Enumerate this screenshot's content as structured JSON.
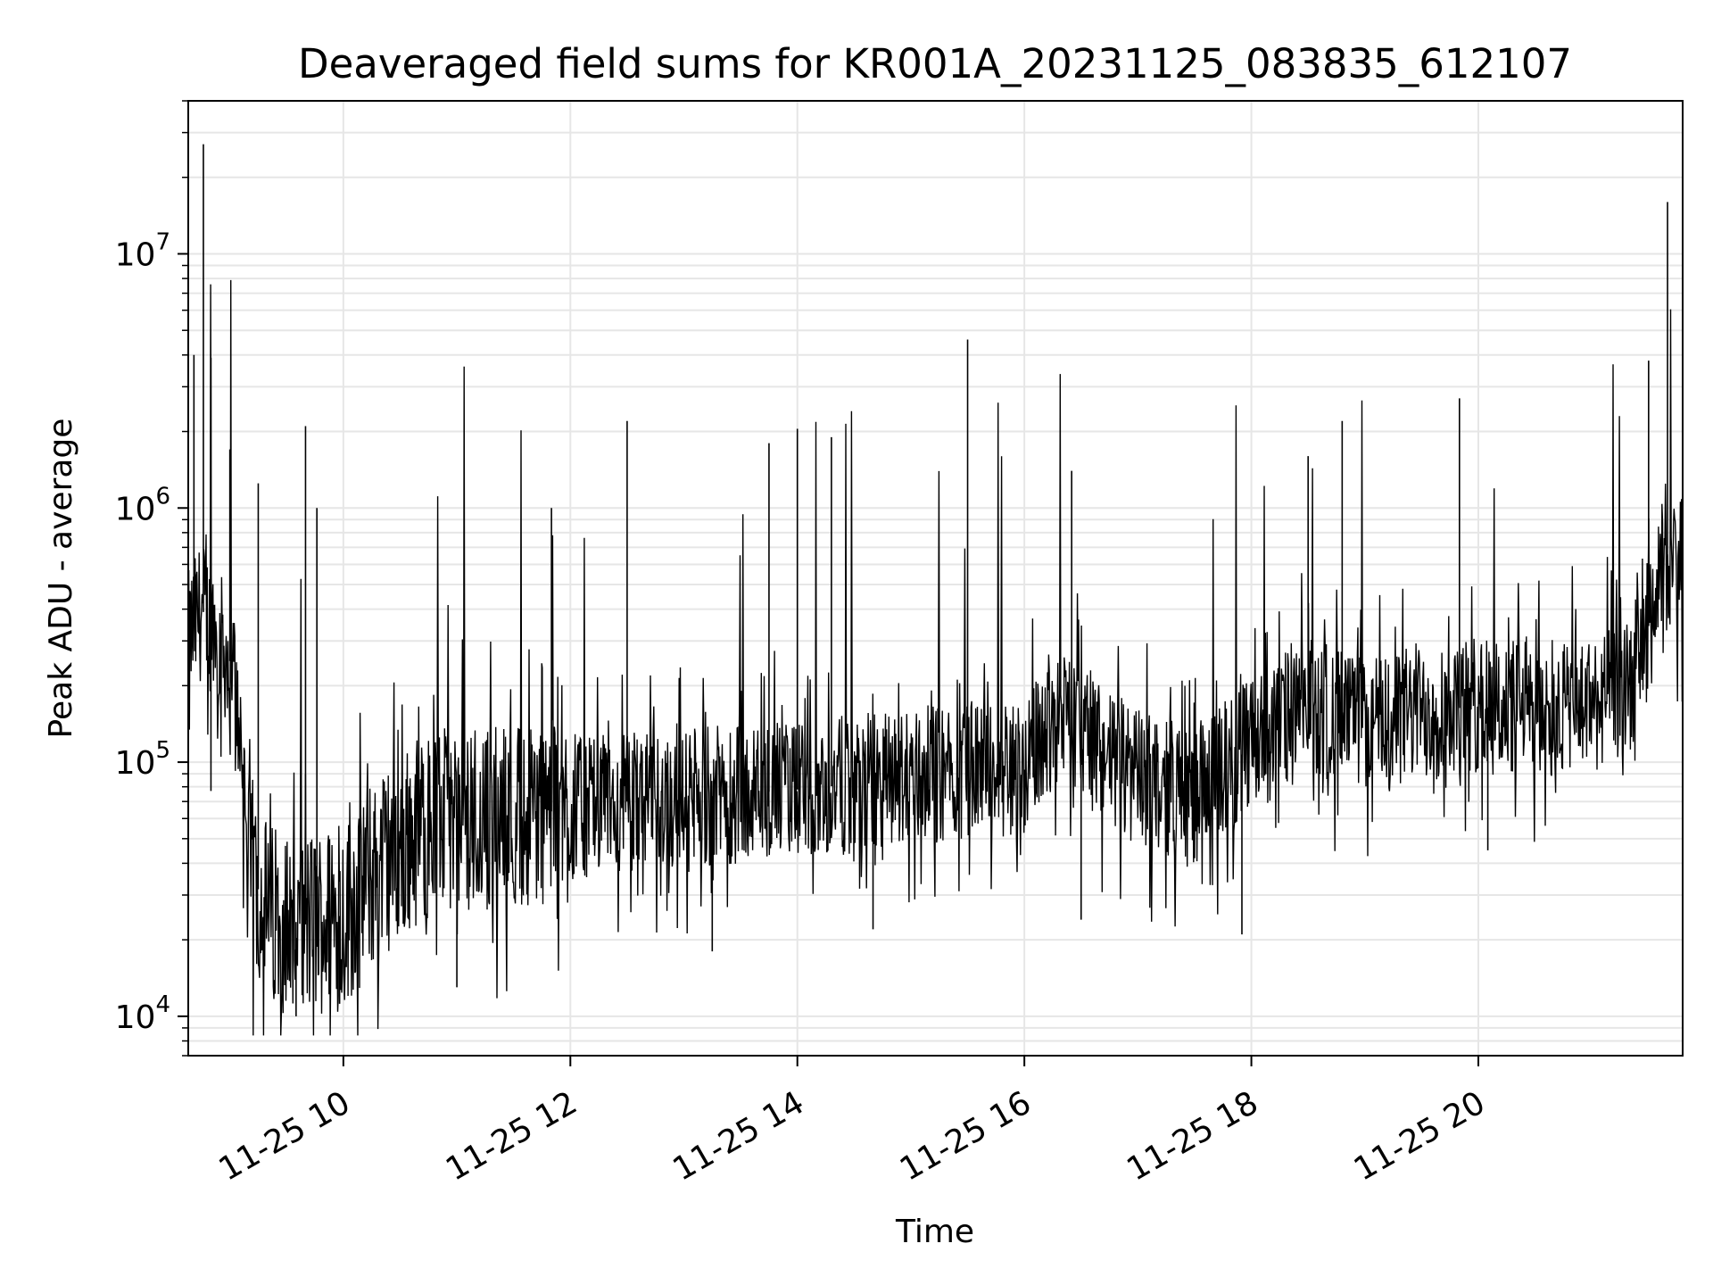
{
  "chart_data": {
    "type": "line",
    "title": "Deaveraged field sums for KR001A_20231125_083835_612107",
    "xlabel": "Time",
    "ylabel": "Peak ADU - average",
    "yscale": "log",
    "grid": true,
    "legend": "none",
    "xlim": [
      "2023-11-25 08:38",
      "2023-11-25 21:48"
    ],
    "ylim": [
      7000,
      40000000
    ],
    "x_ticks": [
      {
        "value": "2023-11-25 10:00",
        "label": "11-25 10"
      },
      {
        "value": "2023-11-25 12:00",
        "label": "11-25 12"
      },
      {
        "value": "2023-11-25 14:00",
        "label": "11-25 14"
      },
      {
        "value": "2023-11-25 16:00",
        "label": "11-25 16"
      },
      {
        "value": "2023-11-25 18:00",
        "label": "11-25 18"
      },
      {
        "value": "2023-11-25 20:00",
        "label": "11-25 20"
      }
    ],
    "y_ticks": [
      {
        "value": 10000,
        "base": "10",
        "exp": "4"
      },
      {
        "value": 100000,
        "base": "10",
        "exp": "5"
      },
      {
        "value": 1000000,
        "base": "10",
        "exp": "6"
      },
      {
        "value": 10000000,
        "base": "10",
        "exp": "7"
      }
    ],
    "line_color": "#000000",
    "grid_color": "#e6e6e6",
    "series": [
      {
        "x": [
          "2023-11-25 08:38",
          "2023-11-25 08:45",
          "2023-11-25 08:50",
          "2023-11-25 09:00",
          "2023-11-25 09:05",
          "2023-11-25 09:10",
          "2023-11-25 09:20",
          "2023-11-25 09:30",
          "2023-11-25 09:40",
          "2023-11-25 10:00",
          "2023-11-25 10:20",
          "2023-11-25 10:40",
          "2023-11-25 11:00",
          "2023-11-25 11:30",
          "2023-11-25 12:00",
          "2023-11-25 12:30",
          "2023-11-25 13:00",
          "2023-11-25 13:30",
          "2023-11-25 14:00",
          "2023-11-25 14:30",
          "2023-11-25 15:00",
          "2023-11-25 15:30",
          "2023-11-25 16:00",
          "2023-11-25 16:20",
          "2023-11-25 16:40",
          "2023-11-25 17:00",
          "2023-11-25 17:30",
          "2023-11-25 18:00",
          "2023-11-25 18:30",
          "2023-11-25 19:00",
          "2023-11-25 19:30",
          "2023-11-25 20:00",
          "2023-11-25 20:30",
          "2023-11-25 21:00",
          "2023-11-25 21:20",
          "2023-11-25 21:35",
          "2023-11-25 21:48"
        ],
        "values": [
          300000,
          400000,
          350000,
          250000,
          150000,
          40000,
          25000,
          24000,
          23000,
          25000,
          40000,
          55000,
          60000,
          62000,
          65000,
          70000,
          72000,
          75000,
          78000,
          82000,
          88000,
          92000,
          95000,
          170000,
          110000,
          85000,
          75000,
          115000,
          170000,
          140000,
          160000,
          165000,
          160000,
          170000,
          200000,
          450000,
          600000
        ]
      }
    ],
    "spikes": [
      {
        "x": "2023-11-25 08:46",
        "y": 27000000
      },
      {
        "x": "2023-11-25 08:50",
        "y": 3900000
      },
      {
        "x": "2023-11-25 08:41",
        "y": 4000000
      },
      {
        "x": "2023-11-25 09:00",
        "y": 1700000
      },
      {
        "x": "2023-11-25 09:15",
        "y": 1250000
      },
      {
        "x": "2023-11-25 09:40",
        "y": 2100000
      },
      {
        "x": "2023-11-25 09:46",
        "y": 1000000
      },
      {
        "x": "2023-11-25 11:50",
        "y": 1000000
      },
      {
        "x": "2023-11-25 12:30",
        "y": 2200000
      },
      {
        "x": "2023-11-25 13:45",
        "y": 1800000
      },
      {
        "x": "2023-11-25 14:00",
        "y": 2050000
      },
      {
        "x": "2023-11-25 14:18",
        "y": 1900000
      },
      {
        "x": "2023-11-25 15:30",
        "y": 4600000
      },
      {
        "x": "2023-11-25 16:25",
        "y": 1400000
      },
      {
        "x": "2023-11-25 18:30",
        "y": 1600000
      },
      {
        "x": "2023-11-25 18:48",
        "y": 2200000
      },
      {
        "x": "2023-11-25 19:50",
        "y": 2700000
      },
      {
        "x": "2023-11-25 21:30",
        "y": 3800000
      },
      {
        "x": "2023-11-25 21:40",
        "y": 16000000
      }
    ],
    "dips": [
      {
        "x": "2023-11-25 08:50",
        "y": 77000
      },
      {
        "x": "2023-11-25 09:35",
        "y": 10000
      },
      {
        "x": "2023-11-25 09:58",
        "y": 11200
      },
      {
        "x": "2023-11-25 11:00",
        "y": 13000
      },
      {
        "x": "2023-11-25 13:15",
        "y": 18000
      },
      {
        "x": "2023-11-25 14:40",
        "y": 22000
      },
      {
        "x": "2023-11-25 16:30",
        "y": 24000
      },
      {
        "x": "2023-11-25 17:55",
        "y": 21000
      },
      {
        "x": "2023-11-25 20:05",
        "y": 45000
      }
    ]
  }
}
